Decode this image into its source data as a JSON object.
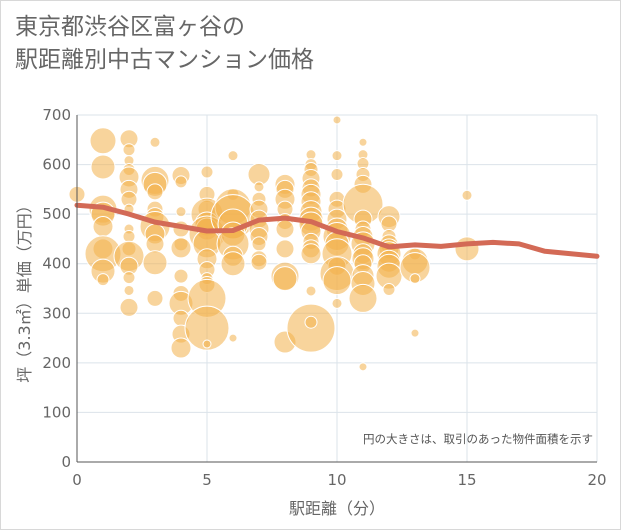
{
  "title_lines": [
    "東京都渋谷区富ヶ谷の",
    "駅距離別中古マンション価格"
  ],
  "chart_data": {
    "type": "scatter",
    "title": "東京都渋谷区富ヶ谷の駅距離別中古マンション価格",
    "xlabel": "駅距離（分）",
    "ylabel": "坪（3.3㎡）単価（万円）",
    "xlim": [
      0,
      20
    ],
    "ylim": [
      0,
      700
    ],
    "xticks": [
      0,
      5,
      10,
      15,
      20
    ],
    "yticks": [
      0,
      100,
      200,
      300,
      400,
      500,
      600,
      700
    ],
    "grid": true,
    "note": "円の大きさは、取引のあった物件面積を示す",
    "colors": {
      "bubble": "#f3b04a",
      "trend": "#d36a56",
      "grid": "#dbe3ea",
      "axis": "#555555"
    },
    "trend": {
      "x": [
        0,
        1,
        2,
        3,
        4,
        5,
        6,
        7,
        8,
        9,
        10,
        11,
        12,
        13,
        14,
        15,
        16,
        17,
        18,
        19,
        20
      ],
      "y": [
        518,
        514,
        500,
        484,
        475,
        466,
        467,
        488,
        492,
        485,
        465,
        452,
        434,
        438,
        435,
        440,
        443,
        440,
        425,
        420,
        415
      ]
    },
    "points": [
      [
        0,
        540,
        8
      ],
      [
        1,
        648,
        13
      ],
      [
        1,
        595,
        12
      ],
      [
        1,
        510,
        14
      ],
      [
        1,
        500,
        12
      ],
      [
        1,
        475,
        10
      ],
      [
        1,
        430,
        10
      ],
      [
        1,
        420,
        18
      ],
      [
        1,
        385,
        12
      ],
      [
        1,
        368,
        6
      ],
      [
        2,
        652,
        9
      ],
      [
        2,
        630,
        6
      ],
      [
        2,
        608,
        5
      ],
      [
        2,
        590,
        6
      ],
      [
        2,
        575,
        10
      ],
      [
        2,
        550,
        9
      ],
      [
        2,
        530,
        8
      ],
      [
        2,
        510,
        5
      ],
      [
        2,
        470,
        5
      ],
      [
        2,
        455,
        6
      ],
      [
        2,
        430,
        7
      ],
      [
        2,
        415,
        15
      ],
      [
        2,
        395,
        9
      ],
      [
        2,
        372,
        6
      ],
      [
        2,
        346,
        5
      ],
      [
        2,
        312,
        9
      ],
      [
        3,
        645,
        5
      ],
      [
        3,
        568,
        14
      ],
      [
        3,
        560,
        12
      ],
      [
        3,
        545,
        8
      ],
      [
        3,
        510,
        8
      ],
      [
        3,
        495,
        9
      ],
      [
        3,
        475,
        15
      ],
      [
        3,
        460,
        10
      ],
      [
        3,
        440,
        9
      ],
      [
        3,
        402,
        12
      ],
      [
        3,
        330,
        8
      ],
      [
        4,
        578,
        9
      ],
      [
        4,
        565,
        6
      ],
      [
        4,
        505,
        5
      ],
      [
        4,
        470,
        8
      ],
      [
        4,
        440,
        7
      ],
      [
        4,
        432,
        10
      ],
      [
        4,
        375,
        7
      ],
      [
        4,
        340,
        8
      ],
      [
        4,
        320,
        12
      ],
      [
        4,
        290,
        8
      ],
      [
        4,
        258,
        9
      ],
      [
        4,
        230,
        10
      ],
      [
        5,
        585,
        6
      ],
      [
        5,
        540,
        8
      ],
      [
        5,
        510,
        9
      ],
      [
        5,
        500,
        16
      ],
      [
        5,
        480,
        12
      ],
      [
        5,
        470,
        11
      ],
      [
        5,
        460,
        18
      ],
      [
        5,
        440,
        14
      ],
      [
        5,
        410,
        10
      ],
      [
        5,
        388,
        8
      ],
      [
        5,
        370,
        6
      ],
      [
        5,
        358,
        8
      ],
      [
        5,
        330,
        19
      ],
      [
        5,
        270,
        22
      ],
      [
        5,
        238,
        4
      ],
      [
        6,
        618,
        5
      ],
      [
        6,
        540,
        6
      ],
      [
        6,
        515,
        18
      ],
      [
        6,
        495,
        22
      ],
      [
        6,
        480,
        15
      ],
      [
        6,
        460,
        12
      ],
      [
        6,
        440,
        16
      ],
      [
        6,
        415,
        10
      ],
      [
        6,
        400,
        12
      ],
      [
        6,
        250,
        4
      ],
      [
        7,
        580,
        11
      ],
      [
        7,
        555,
        5
      ],
      [
        7,
        530,
        7
      ],
      [
        7,
        510,
        9
      ],
      [
        7,
        490,
        9
      ],
      [
        7,
        470,
        10
      ],
      [
        7,
        455,
        9
      ],
      [
        7,
        440,
        7
      ],
      [
        7,
        410,
        8
      ],
      [
        7,
        403,
        8
      ],
      [
        8,
        560,
        10
      ],
      [
        8,
        550,
        9
      ],
      [
        8,
        530,
        10
      ],
      [
        8,
        510,
        8
      ],
      [
        8,
        485,
        8
      ],
      [
        8,
        470,
        9
      ],
      [
        8,
        430,
        9
      ],
      [
        8,
        375,
        14
      ],
      [
        8,
        370,
        12
      ],
      [
        8,
        242,
        11
      ],
      [
        9,
        620,
        5
      ],
      [
        9,
        600,
        6
      ],
      [
        9,
        590,
        7
      ],
      [
        9,
        572,
        9
      ],
      [
        9,
        553,
        9
      ],
      [
        9,
        540,
        10
      ],
      [
        9,
        525,
        10
      ],
      [
        9,
        505,
        11
      ],
      [
        9,
        490,
        12
      ],
      [
        9,
        480,
        12
      ],
      [
        9,
        465,
        10
      ],
      [
        9,
        445,
        8
      ],
      [
        9,
        430,
        9
      ],
      [
        9,
        420,
        10
      ],
      [
        9,
        345,
        5
      ],
      [
        9,
        270,
        24
      ],
      [
        9,
        282,
        6
      ],
      [
        10,
        690,
        4
      ],
      [
        10,
        618,
        5
      ],
      [
        10,
        580,
        6
      ],
      [
        10,
        530,
        8
      ],
      [
        10,
        510,
        9
      ],
      [
        10,
        490,
        10
      ],
      [
        10,
        470,
        11
      ],
      [
        10,
        455,
        14
      ],
      [
        10,
        440,
        12
      ],
      [
        10,
        420,
        15
      ],
      [
        10,
        395,
        9
      ],
      [
        10,
        380,
        17
      ],
      [
        10,
        366,
        14
      ],
      [
        10,
        320,
        5
      ],
      [
        11,
        645,
        4
      ],
      [
        11,
        620,
        5
      ],
      [
        11,
        602,
        6
      ],
      [
        11,
        580,
        7
      ],
      [
        11,
        560,
        9
      ],
      [
        11,
        520,
        20
      ],
      [
        11,
        490,
        9
      ],
      [
        11,
        470,
        8
      ],
      [
        11,
        455,
        10
      ],
      [
        11,
        440,
        12
      ],
      [
        11,
        420,
        10
      ],
      [
        11,
        410,
        11
      ],
      [
        11,
        400,
        9
      ],
      [
        11,
        376,
        11
      ],
      [
        11,
        360,
        12
      ],
      [
        11,
        330,
        14
      ],
      [
        11,
        192,
        4
      ],
      [
        12,
        495,
        11
      ],
      [
        12,
        480,
        8
      ],
      [
        12,
        455,
        7
      ],
      [
        12,
        440,
        9
      ],
      [
        12,
        430,
        10
      ],
      [
        12,
        420,
        12
      ],
      [
        12,
        405,
        11
      ],
      [
        12,
        395,
        12
      ],
      [
        12,
        375,
        13
      ],
      [
        12,
        348,
        6
      ],
      [
        13,
        420,
        6
      ],
      [
        13,
        405,
        13
      ],
      [
        13,
        392,
        15
      ],
      [
        13,
        370,
        5
      ],
      [
        13,
        260,
        4
      ],
      [
        15,
        538,
        5
      ],
      [
        15,
        430,
        12
      ]
    ]
  }
}
